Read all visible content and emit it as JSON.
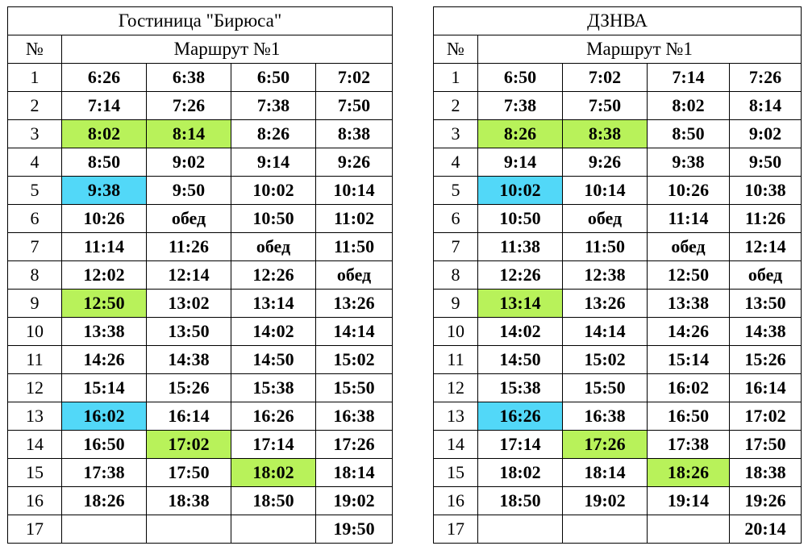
{
  "colors": {
    "green": "#b8f25a",
    "cyan": "#52d8f8"
  },
  "tables": [
    {
      "title": "Гостиница \"Бирюса\"",
      "num_header": "№",
      "route_header": "Маршрут №1",
      "rows": [
        {
          "n": "1",
          "t": [
            "6:26",
            "6:38",
            "6:50",
            "7:02"
          ]
        },
        {
          "n": "2",
          "t": [
            "7:14",
            "7:26",
            "7:38",
            "7:50"
          ]
        },
        {
          "n": "3",
          "t": [
            "8:02",
            "8:14",
            "8:26",
            "8:38"
          ],
          "hl": [
            "green",
            "green",
            "",
            ""
          ]
        },
        {
          "n": "4",
          "t": [
            "8:50",
            "9:02",
            "9:14",
            "9:26"
          ]
        },
        {
          "n": "5",
          "t": [
            "9:38",
            "9:50",
            "10:02",
            "10:14"
          ],
          "hl": [
            "cyan",
            "",
            "",
            ""
          ]
        },
        {
          "n": "6",
          "t": [
            "10:26",
            "обед",
            "10:50",
            "11:02"
          ]
        },
        {
          "n": "7",
          "t": [
            "11:14",
            "11:26",
            "обед",
            "11:50"
          ]
        },
        {
          "n": "8",
          "t": [
            "12:02",
            "12:14",
            "12:26",
            "обед"
          ]
        },
        {
          "n": "9",
          "t": [
            "12:50",
            "13:02",
            "13:14",
            "13:26"
          ],
          "hl": [
            "green",
            "",
            "",
            ""
          ]
        },
        {
          "n": "10",
          "t": [
            "13:38",
            "13:50",
            "14:02",
            "14:14"
          ]
        },
        {
          "n": "11",
          "t": [
            "14:26",
            "14:38",
            "14:50",
            "15:02"
          ]
        },
        {
          "n": "12",
          "t": [
            "15:14",
            "15:26",
            "15:38",
            "15:50"
          ]
        },
        {
          "n": "13",
          "t": [
            "16:02",
            "16:14",
            "16:26",
            "16:38"
          ],
          "hl": [
            "cyan",
            "",
            "",
            ""
          ]
        },
        {
          "n": "14",
          "t": [
            "16:50",
            "17:02",
            "17:14",
            "17:26"
          ],
          "hl": [
            "",
            "green",
            "",
            ""
          ]
        },
        {
          "n": "15",
          "t": [
            "17:38",
            "17:50",
            "18:02",
            "18:14"
          ],
          "hl": [
            "",
            "",
            "green",
            ""
          ]
        },
        {
          "n": "16",
          "t": [
            "18:26",
            "18:38",
            "18:50",
            "19:02"
          ]
        },
        {
          "n": "17",
          "t": [
            "",
            "",
            "",
            "19:50"
          ]
        }
      ]
    },
    {
      "title": "ДЗНВА",
      "num_header": "№",
      "route_header": "Маршрут №1",
      "rows": [
        {
          "n": "1",
          "t": [
            "6:50",
            "7:02",
            "7:14",
            "7:26"
          ]
        },
        {
          "n": "2",
          "t": [
            "7:38",
            "7:50",
            "8:02",
            "8:14"
          ]
        },
        {
          "n": "3",
          "t": [
            "8:26",
            "8:38",
            "8:50",
            "9:02"
          ],
          "hl": [
            "green",
            "green",
            "",
            ""
          ]
        },
        {
          "n": "4",
          "t": [
            "9:14",
            "9:26",
            "9:38",
            "9:50"
          ]
        },
        {
          "n": "5",
          "t": [
            "10:02",
            "10:14",
            "10:26",
            "10:38"
          ],
          "hl": [
            "cyan",
            "",
            "",
            ""
          ]
        },
        {
          "n": "6",
          "t": [
            "10:50",
            "обед",
            "11:14",
            "11:26"
          ]
        },
        {
          "n": "7",
          "t": [
            "11:38",
            "11:50",
            "обед",
            "12:14"
          ]
        },
        {
          "n": "8",
          "t": [
            "12:26",
            "12:38",
            "12:50",
            "обед"
          ]
        },
        {
          "n": "9",
          "t": [
            "13:14",
            "13:26",
            "13:38",
            "13:50"
          ],
          "hl": [
            "green",
            "",
            "",
            ""
          ]
        },
        {
          "n": "10",
          "t": [
            "14:02",
            "14:14",
            "14:26",
            "14:38"
          ]
        },
        {
          "n": "11",
          "t": [
            "14:50",
            "15:02",
            "15:14",
            "15:26"
          ]
        },
        {
          "n": "12",
          "t": [
            "15:38",
            "15:50",
            "16:02",
            "16:14"
          ]
        },
        {
          "n": "13",
          "t": [
            "16:26",
            "16:38",
            "16:50",
            "17:02"
          ],
          "hl": [
            "cyan",
            "",
            "",
            ""
          ]
        },
        {
          "n": "14",
          "t": [
            "17:14",
            "17:26",
            "17:38",
            "17:50"
          ],
          "hl": [
            "",
            "green",
            "",
            ""
          ]
        },
        {
          "n": "15",
          "t": [
            "18:02",
            "18:14",
            "18:26",
            "18:38"
          ],
          "hl": [
            "",
            "",
            "green",
            ""
          ]
        },
        {
          "n": "16",
          "t": [
            "18:50",
            "19:02",
            "19:14",
            "19:26"
          ]
        },
        {
          "n": "17",
          "t": [
            "",
            "",
            "",
            "20:14"
          ]
        }
      ]
    }
  ]
}
